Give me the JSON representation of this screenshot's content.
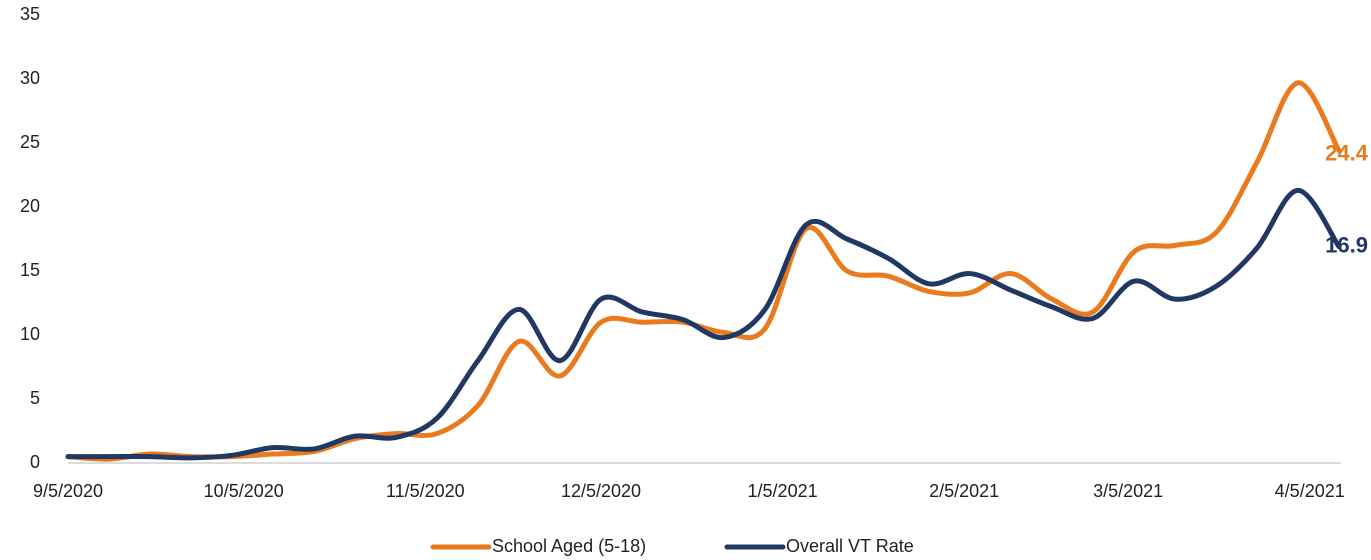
{
  "chart_data": {
    "type": "line",
    "x": [
      "2020-09-05",
      "2020-09-12",
      "2020-09-19",
      "2020-09-26",
      "2020-10-03",
      "2020-10-10",
      "2020-10-17",
      "2020-10-24",
      "2020-10-31",
      "2020-11-07",
      "2020-11-14",
      "2020-11-21",
      "2020-11-28",
      "2020-12-05",
      "2020-12-12",
      "2020-12-19",
      "2020-12-26",
      "2021-01-02",
      "2021-01-09",
      "2021-01-16",
      "2021-01-23",
      "2021-01-30",
      "2021-02-06",
      "2021-02-13",
      "2021-02-20",
      "2021-02-27",
      "2021-03-06",
      "2021-03-13",
      "2021-03-20",
      "2021-03-27",
      "2021-04-03",
      "2021-04-10"
    ],
    "series": [
      {
        "name": "School Aged (5-18)",
        "color": "#e97b1e",
        "values": [
          0.5,
          0.3,
          0.7,
          0.5,
          0.5,
          0.7,
          0.9,
          1.9,
          2.3,
          2.3,
          4.5,
          9.5,
          6.8,
          11.0,
          11.0,
          11.0,
          10.2,
          10.5,
          18.3,
          15.0,
          14.6,
          13.4,
          13.3,
          14.8,
          12.8,
          11.8,
          16.5,
          17.0,
          18.0,
          23.5,
          29.7,
          24.4
        ]
      },
      {
        "name": "Overall VT Rate",
        "color": "#1f3864",
        "values": [
          0.5,
          0.5,
          0.5,
          0.4,
          0.6,
          1.2,
          1.1,
          2.1,
          2.0,
          3.5,
          8.0,
          12.0,
          8.0,
          12.8,
          11.8,
          11.2,
          9.8,
          12.0,
          18.6,
          17.5,
          16.0,
          14.0,
          14.8,
          13.5,
          12.2,
          11.3,
          14.2,
          12.8,
          13.8,
          16.8,
          21.3,
          16.9
        ]
      }
    ],
    "xlim": [
      "2020-09-05",
      "2021-04-10"
    ],
    "xticks": [
      {
        "value": "2020-09-05",
        "label": "9/5/2020"
      },
      {
        "value": "2020-10-05",
        "label": "10/5/2020"
      },
      {
        "value": "2020-11-05",
        "label": "11/5/2020"
      },
      {
        "value": "2020-12-05",
        "label": "12/5/2020"
      },
      {
        "value": "2021-01-05",
        "label": "1/5/2021"
      },
      {
        "value": "2021-02-05",
        "label": "2/5/2021"
      },
      {
        "value": "2021-03-05",
        "label": "3/5/2021"
      },
      {
        "value": "2021-04-05",
        "label": "4/5/2021"
      }
    ],
    "ylim": [
      0,
      35
    ],
    "yticks": [
      0,
      5,
      10,
      15,
      20,
      25,
      30,
      35
    ],
    "grid": false,
    "legend": "bottom"
  }
}
